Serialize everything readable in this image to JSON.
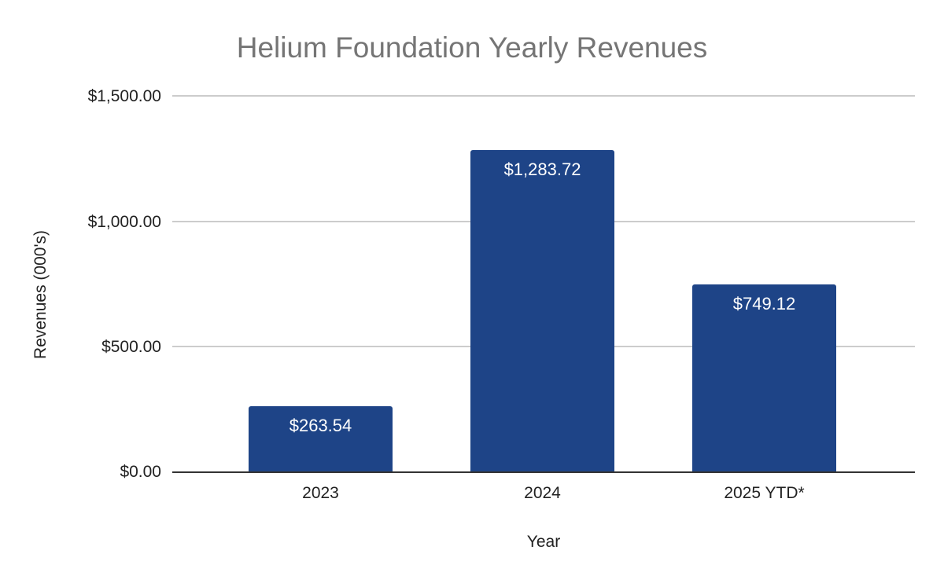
{
  "chart_data": {
    "type": "bar",
    "title": "Helium Foundation Yearly Revenues",
    "xlabel": "Year",
    "ylabel": "Revenues (000's)",
    "categories": [
      "2023",
      "2024",
      "2025 YTD*"
    ],
    "values": [
      263.54,
      1283.72,
      749.12
    ],
    "value_labels": [
      "$263.54",
      "$1,283.72",
      "$749.12"
    ],
    "ylim": [
      0,
      1500
    ],
    "yticks": [
      0,
      500,
      1000,
      1500
    ],
    "ytick_labels": [
      "$0.00",
      "$500.00",
      "$1,000.00",
      "$1,500.00"
    ],
    "grid": true,
    "legend": null,
    "bar_color": "#1e4487"
  },
  "title": "Helium Foundation Yearly Revenues",
  "axes": {
    "x_label": "Year",
    "y_label": "Revenues (000's)",
    "yticks": [
      "$1,500.00",
      "$1,000.00",
      "$500.00",
      "$0.00"
    ]
  },
  "bars": [
    {
      "category": "2023",
      "label": "$263.54"
    },
    {
      "category": "2024",
      "label": "$1,283.72"
    },
    {
      "category": "2025 YTD*",
      "label": "$749.12"
    }
  ]
}
